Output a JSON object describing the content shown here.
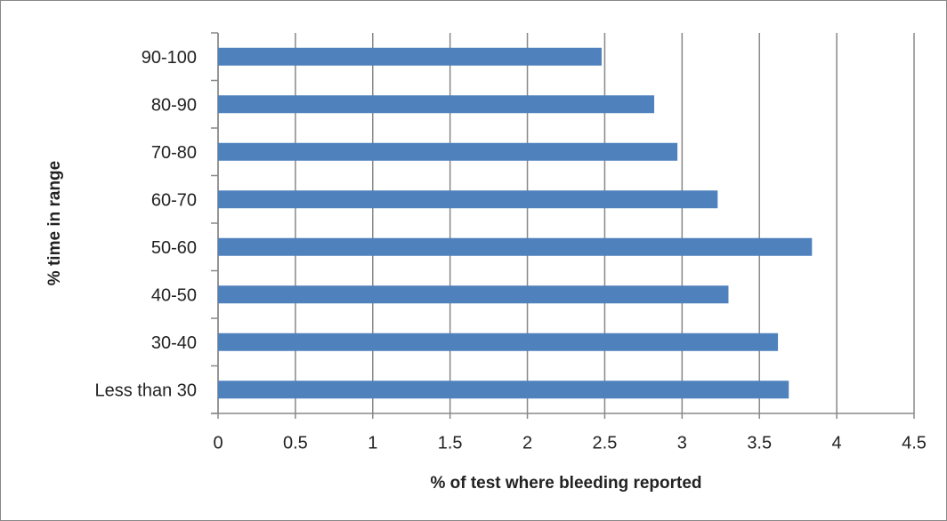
{
  "chart_data": {
    "type": "bar",
    "orientation": "horizontal",
    "categories": [
      "90-100",
      "80-90",
      "70-80",
      "60-70",
      "50-60",
      "40-50",
      "30-40",
      "Less than 30"
    ],
    "values": [
      2.48,
      2.82,
      2.97,
      3.23,
      3.84,
      3.3,
      3.62,
      3.69
    ],
    "color": "#4f81bd",
    "xlim": [
      0,
      4.5
    ],
    "xticks": [
      0,
      0.5,
      1,
      1.5,
      2,
      2.5,
      3,
      3.5,
      4,
      4.5
    ],
    "grid": true,
    "xlabel": "% of test where bleeding reported",
    "ylabel": "% time in range"
  }
}
